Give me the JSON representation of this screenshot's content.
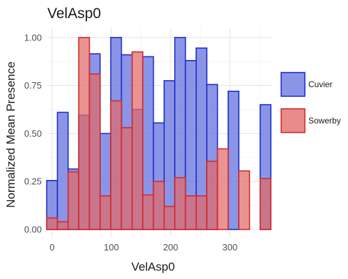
{
  "chart_data": {
    "type": "bar",
    "title": "VelAsp0",
    "xlabel": "VelAsp0",
    "ylabel": "Normalized Mean Presence",
    "xlim": [
      -8,
      370
    ],
    "ylim": [
      -0.04,
      1.05
    ],
    "x_ticks": [
      0,
      100,
      200,
      300
    ],
    "y_ticks": [
      0.0,
      0.25,
      0.5,
      0.75,
      1.0
    ],
    "x_tick_labels": [
      "0",
      "100",
      "200",
      "300"
    ],
    "y_tick_labels": [
      "0.00",
      "0.25",
      "0.50",
      "0.75",
      "1.00"
    ],
    "bin_width": 18,
    "x": [
      0,
      18,
      36,
      54,
      72,
      90,
      108,
      126,
      144,
      162,
      180,
      198,
      216,
      234,
      252,
      270,
      288,
      306,
      324,
      342,
      360
    ],
    "grid": true,
    "legend_position": "right",
    "series": [
      {
        "name": "Cuvier",
        "fill": "#6a77e0",
        "stroke": "#1f2fc8",
        "values": [
          0.255,
          0.61,
          0.315,
          0.595,
          0.915,
          0.5,
          1.0,
          0.91,
          0.625,
          0.9,
          0.555,
          0.775,
          1.0,
          0.88,
          0.945,
          0.755,
          0.0,
          0.72,
          0.0,
          0.0,
          0.65
        ]
      },
      {
        "name": "Sowerby",
        "fill": "#e06a6a",
        "stroke": "#d42a2a",
        "values": [
          0.06,
          0.04,
          0.3,
          1.0,
          0.81,
          0.175,
          0.67,
          0.53,
          0.925,
          0.18,
          0.25,
          0.12,
          0.27,
          0.175,
          0.175,
          0.355,
          0.42,
          0.0,
          0.305,
          0.0,
          0.265
        ]
      }
    ]
  }
}
